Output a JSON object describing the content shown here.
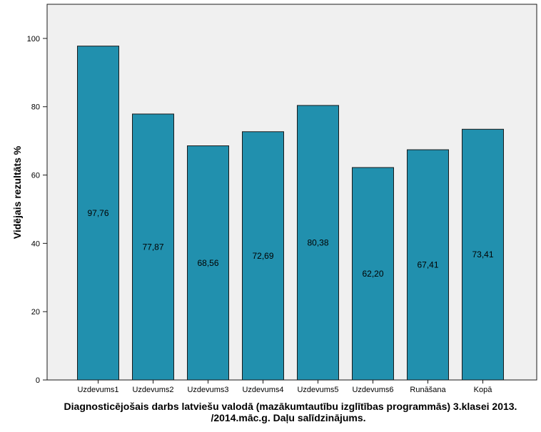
{
  "chart_data": {
    "type": "bar",
    "categories": [
      "Uzdevums1",
      "Uzdevums2",
      "Uzdevums3",
      "Uzdevums4",
      "Uzdevums5",
      "Uzdevums6",
      "Runāšana",
      "Kopā"
    ],
    "values": [
      97.76,
      77.87,
      68.56,
      72.69,
      80.38,
      62.2,
      67.41,
      73.41
    ],
    "value_labels": [
      "97,76",
      "77,87",
      "68,56",
      "72,69",
      "80,38",
      "62,20",
      "67,41",
      "73,41"
    ],
    "title": "",
    "xlabel_lines": [
      "Diagnosticējošais darbs latviešu valodā (mazākumtautību izglītības programmās) 3.klasei 2013.",
      "/2014.māc.g. Daļu salīdzinājums."
    ],
    "ylabel": "Vidējais rezultāts %",
    "ylim": [
      0,
      110
    ],
    "yticks": [
      0,
      20,
      40,
      60,
      80,
      100
    ],
    "grid": false,
    "colors": {
      "bar_fill": "#2190AE",
      "bar_stroke": "#1a1a1a",
      "plot_background": "#F0F0F0",
      "plot_border": "#1a1a1a"
    }
  }
}
